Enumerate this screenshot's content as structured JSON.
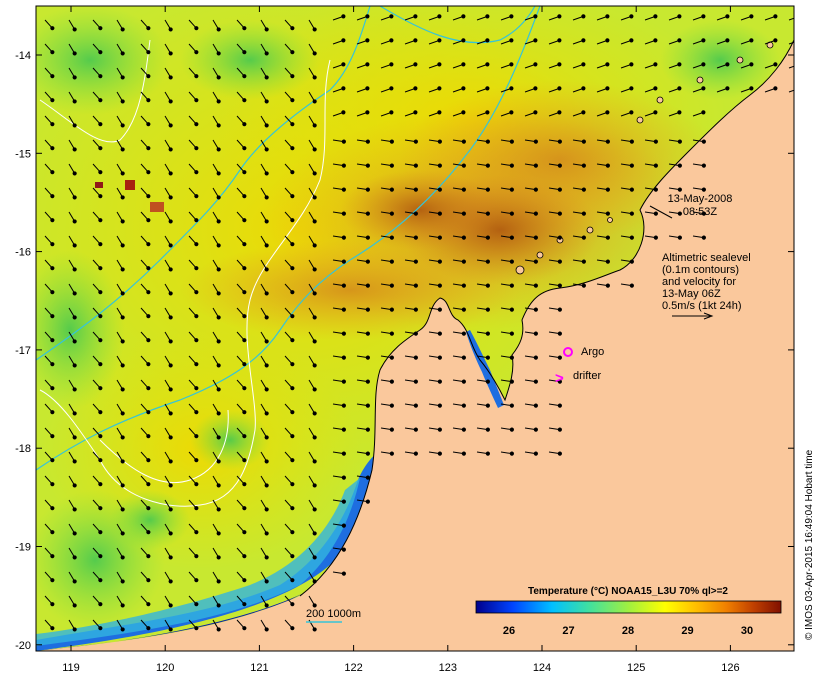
{
  "map": {
    "lon_ticks": [
      "119",
      "120",
      "121",
      "122",
      "123",
      "124",
      "125",
      "126"
    ],
    "lat_ticks": [
      "-14",
      "-15",
      "-16",
      "-17",
      "-18",
      "-19",
      "-20"
    ],
    "date": "13-May-2008",
    "time": "08:53Z",
    "legend_lines": [
      "Altimetric sealevel",
      "(0.1m contours)",
      "and velocity for",
      "13-May 06Z",
      "0.5m/s (1kt 24h)"
    ],
    "argo_label": "Argo",
    "drifter_label": "drifter",
    "drifter_symbol": ">",
    "depth_label": "200  1000m",
    "colorbar": {
      "title": "Temperature (°C) NOAA15_L3U 70% ql>=2",
      "ticks": [
        "26",
        "27",
        "28",
        "29",
        "30"
      ]
    },
    "credit": "© IMOS 03-Apr-2015 16:49:04 Hobart time",
    "colors": {
      "land": "#fac89c",
      "argo": "#ff00ff",
      "isobath": "#36c4d8",
      "sealevel_contour": "#ffffff"
    }
  }
}
